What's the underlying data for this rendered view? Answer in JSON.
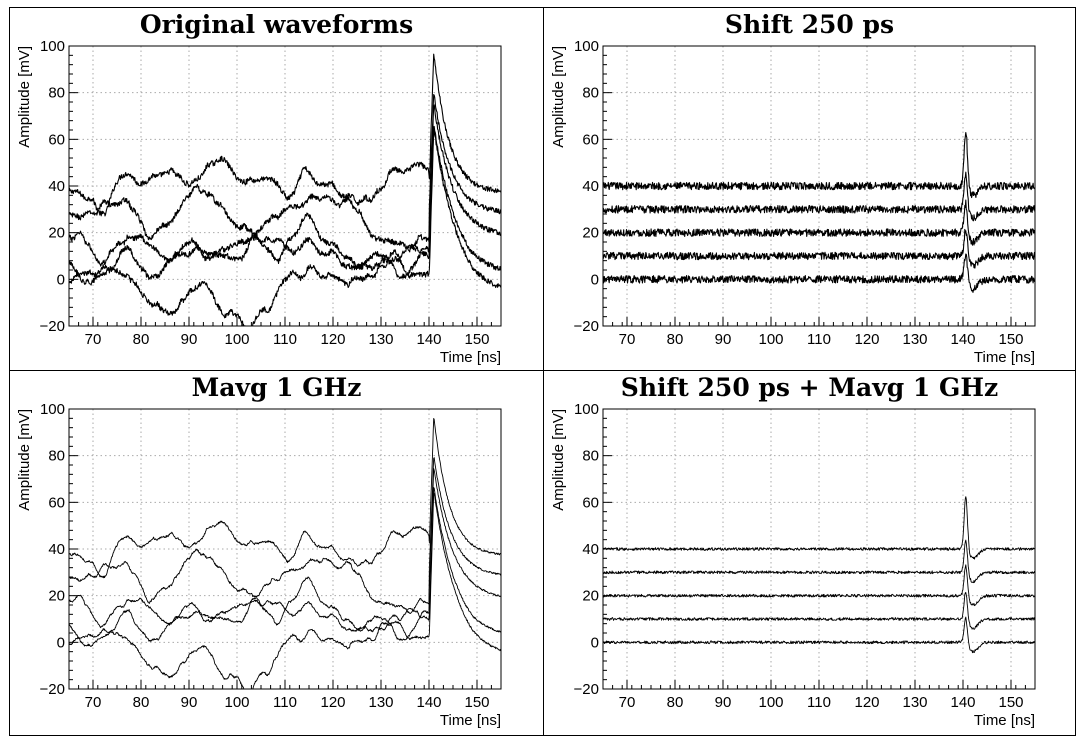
{
  "chart_data": [
    {
      "type": "line",
      "title": "Original waveforms",
      "xlabel": "Time [ns]",
      "ylabel": "Amplitude [mV]",
      "xlim": [
        65,
        155
      ],
      "ylim": [
        -20,
        100
      ],
      "xticks": [
        "70",
        "80",
        "90",
        "100",
        "110",
        "120",
        "130",
        "140",
        "150"
      ],
      "yticks": [
        "−20",
        "0",
        "20",
        "40",
        "60",
        "80",
        "100"
      ],
      "grid": true,
      "noise": "low-frequency",
      "pulse_width": "wide",
      "series": [
        {
          "baseline": 38,
          "peak": 97,
          "end": 37
        },
        {
          "baseline": 28,
          "peak": 80,
          "end": 28
        },
        {
          "baseline": 18,
          "peak": 75,
          "end": 18
        },
        {
          "baseline": 8,
          "peak": 67,
          "end": 2
        },
        {
          "baseline": -1,
          "peak": 65,
          "end": -7
        }
      ]
    },
    {
      "type": "line",
      "title": "Shift 250 ps",
      "xlabel": "Time [ns]",
      "ylabel": "Amplitude [mV]",
      "xlim": [
        65,
        155
      ],
      "ylim": [
        -20,
        100
      ],
      "xticks": [
        "70",
        "80",
        "90",
        "100",
        "110",
        "120",
        "130",
        "140",
        "150"
      ],
      "yticks": [
        "−20",
        "0",
        "20",
        "40",
        "60",
        "80",
        "100"
      ],
      "grid": true,
      "noise": "high-frequency",
      "pulse_width": "narrow",
      "series": [
        {
          "baseline": 40,
          "peak": 64,
          "end": 40
        },
        {
          "baseline": 30,
          "peak": 46,
          "end": 30
        },
        {
          "baseline": 20,
          "peak": 33,
          "end": 20
        },
        {
          "baseline": 10,
          "peak": 22,
          "end": 10
        },
        {
          "baseline": 0,
          "peak": 11,
          "end": 0
        }
      ]
    },
    {
      "type": "line",
      "title": "Mavg 1 GHz",
      "xlabel": "Time [ns]",
      "ylabel": "Amplitude [mV]",
      "xlim": [
        65,
        155
      ],
      "ylim": [
        -20,
        100
      ],
      "xticks": [
        "70",
        "80",
        "90",
        "100",
        "110",
        "120",
        "130",
        "140",
        "150"
      ],
      "yticks": [
        "−20",
        "0",
        "20",
        "40",
        "60",
        "80",
        "100"
      ],
      "grid": true,
      "noise": "low-frequency-smooth",
      "pulse_width": "wide",
      "series": [
        {
          "baseline": 38,
          "peak": 97,
          "end": 37
        },
        {
          "baseline": 28,
          "peak": 80,
          "end": 28
        },
        {
          "baseline": 18,
          "peak": 75,
          "end": 18
        },
        {
          "baseline": 8,
          "peak": 67,
          "end": 2
        },
        {
          "baseline": -1,
          "peak": 65,
          "end": -7
        }
      ]
    },
    {
      "type": "line",
      "title": "Shift 250 ps + Mavg 1 GHz",
      "xlabel": "Time [ns]",
      "ylabel": "Amplitude [mV]",
      "xlim": [
        65,
        155
      ],
      "ylim": [
        -20,
        100
      ],
      "xticks": [
        "70",
        "80",
        "90",
        "100",
        "110",
        "120",
        "130",
        "140",
        "150"
      ],
      "yticks": [
        "−20",
        "0",
        "20",
        "40",
        "60",
        "80",
        "100"
      ],
      "grid": true,
      "noise": "high-frequency-smooth",
      "pulse_width": "narrow",
      "series": [
        {
          "baseline": 40,
          "peak": 63,
          "end": 40
        },
        {
          "baseline": 30,
          "peak": 44,
          "end": 30
        },
        {
          "baseline": 20,
          "peak": 33,
          "end": 20
        },
        {
          "baseline": 10,
          "peak": 22,
          "end": 10
        },
        {
          "baseline": 0,
          "peak": 11,
          "end": 0
        }
      ]
    }
  ]
}
